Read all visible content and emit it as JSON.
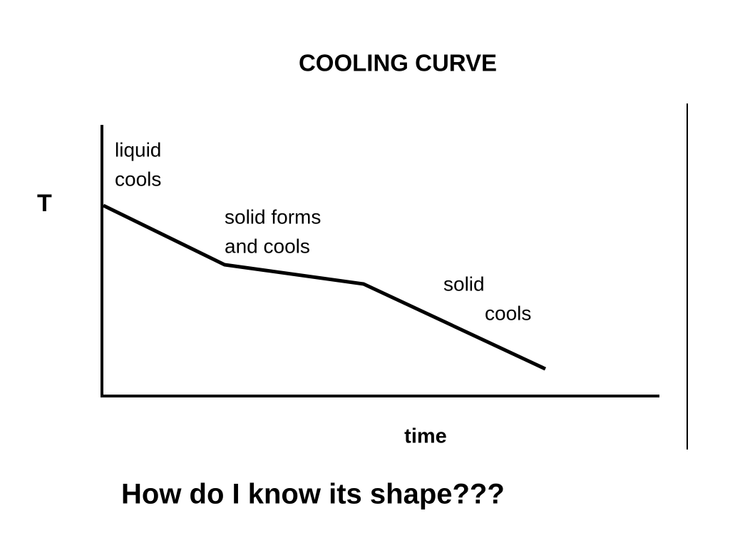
{
  "title": "COOLING CURVE",
  "axes": {
    "y_label": "T",
    "x_label": "time"
  },
  "annotations": [
    {
      "lines": [
        "liquid",
        "cools"
      ]
    },
    {
      "lines": [
        "solid forms",
        "and cools"
      ]
    },
    {
      "lines": [
        "solid",
        "cools"
      ]
    }
  ],
  "question": "How do I know its shape???"
}
